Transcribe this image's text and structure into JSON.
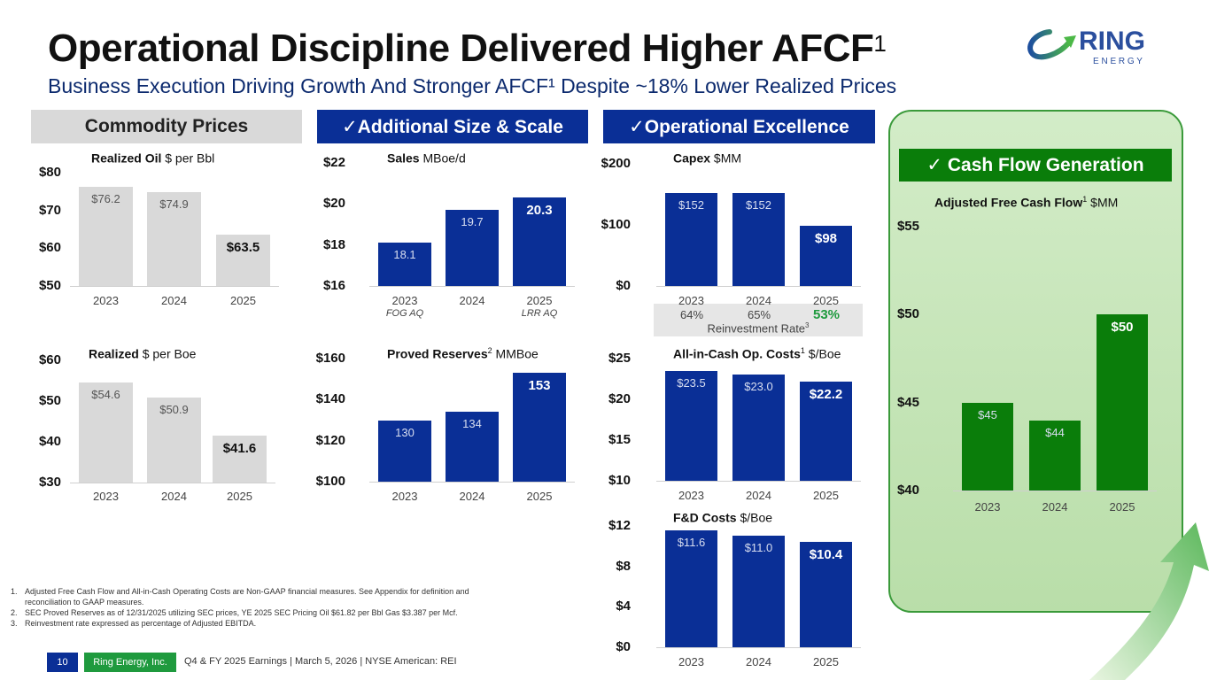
{
  "header": {
    "title": "Operational Discipline Delivered Higher AFCF",
    "title_sup": "1",
    "subtitle": "Business Execution Driving Growth And Stronger AFCF¹ Despite ~18% Lower Realized Prices"
  },
  "logo": {
    "name": "RING",
    "tagline": "E N E R G Y"
  },
  "sections": {
    "commodity": "Commodity Prices",
    "size": "✓Additional  Size & Scale",
    "ops": "✓Operational Excellence",
    "cash": "✓  Cash Flow Generation"
  },
  "colors": {
    "blue": "#0a2f96",
    "gray": "#d9d9d9",
    "green": "#0a7d0a"
  },
  "reinvestment": {
    "values": [
      "64%",
      "65%",
      "53%"
    ],
    "label": "Reinvestment Rate",
    "label_sup": "3"
  },
  "sales_sublabels": [
    "FOG AQ",
    "",
    "LRR AQ"
  ],
  "chart_data": [
    {
      "type": "bar",
      "title_bold": "Realized Oil",
      "title_rest": " $ per Bbl",
      "title_sup": "",
      "categories": [
        "2023",
        "2024",
        "2025"
      ],
      "values": [
        76.2,
        74.9,
        63.5
      ],
      "labels": [
        "$76.2",
        "$74.9",
        "$63.5"
      ],
      "yticks": [
        "$50",
        "$60",
        "$70",
        "$80"
      ],
      "ylim": [
        50,
        80
      ],
      "color": "gray"
    },
    {
      "type": "bar",
      "title_bold": "Realized",
      "title_rest": " $ per Boe",
      "title_sup": "",
      "categories": [
        "2023",
        "2024",
        "2025"
      ],
      "values": [
        54.6,
        50.9,
        41.6
      ],
      "labels": [
        "$54.6",
        "$50.9",
        "$41.6"
      ],
      "yticks": [
        "$30",
        "$40",
        "$50",
        "$60"
      ],
      "ylim": [
        30,
        60
      ],
      "color": "gray"
    },
    {
      "type": "bar",
      "title_bold": "Sales",
      "title_rest": " MBoe/d",
      "title_sup": "",
      "categories": [
        "2023",
        "2024",
        "2025"
      ],
      "values": [
        18.1,
        19.7,
        20.3
      ],
      "labels": [
        "18.1",
        "19.7",
        "20.3"
      ],
      "yticks": [
        "$16",
        "$18",
        "$20",
        "$22"
      ],
      "ylim": [
        16,
        22
      ],
      "color": "blue"
    },
    {
      "type": "bar",
      "title_bold": "Proved Reserves",
      "title_rest": " MMBoe",
      "title_sup": "2",
      "categories": [
        "2023",
        "2024",
        "2025"
      ],
      "values": [
        130,
        134,
        153
      ],
      "labels": [
        "130",
        "134",
        "153"
      ],
      "yticks": [
        "$100",
        "$120",
        "$140",
        "$160"
      ],
      "ylim": [
        100,
        160
      ],
      "color": "blue"
    },
    {
      "type": "bar",
      "title_bold": "Capex",
      "title_rest": " $MM",
      "title_sup": "",
      "categories": [
        "2023",
        "2024",
        "2025"
      ],
      "values": [
        152,
        152,
        98
      ],
      "labels": [
        "$152",
        "$152",
        "$98"
      ],
      "yticks": [
        "$0",
        "$100",
        "$200"
      ],
      "ylim": [
        0,
        200
      ],
      "color": "blue"
    },
    {
      "type": "bar",
      "title_bold": "All-in-Cash Op. Costs",
      "title_rest": " $/Boe",
      "title_sup": "1",
      "categories": [
        "2023",
        "2024",
        "2025"
      ],
      "values": [
        23.5,
        23.0,
        22.2
      ],
      "labels": [
        "$23.5",
        "$23.0",
        "$22.2"
      ],
      "yticks": [
        "$10",
        "$15",
        "$20",
        "$25"
      ],
      "ylim": [
        10,
        25
      ],
      "color": "blue"
    },
    {
      "type": "bar",
      "title_bold": "F&D Costs",
      "title_rest": " $/Boe",
      "title_sup": "",
      "categories": [
        "2023",
        "2024",
        "2025"
      ],
      "values": [
        11.6,
        11.0,
        10.4
      ],
      "labels": [
        "$11.6",
        "$11.0",
        "$10.4"
      ],
      "yticks": [
        "$0",
        "$4",
        "$8",
        "$12"
      ],
      "ylim": [
        0,
        12
      ],
      "color": "blue"
    },
    {
      "type": "bar",
      "title_bold": "Adjusted Free Cash Flow",
      "title_rest": " $MM",
      "title_sup": "1",
      "categories": [
        "2023",
        "2024",
        "2025"
      ],
      "values": [
        45,
        44,
        50
      ],
      "labels": [
        "$45",
        "$44",
        "$50"
      ],
      "yticks": [
        "$40",
        "$45",
        "$50",
        "$55"
      ],
      "ylim": [
        40,
        55
      ],
      "color": "green"
    }
  ],
  "footnotes": [
    {
      "n": "1.",
      "text": "Adjusted Free Cash Flow and All-in-Cash Operating Costs are Non-GAAP financial measures. See Appendix for definition and reconciliation to GAAP measures."
    },
    {
      "n": "2.",
      "text": "SEC Proved Reserves as of 12/31/2025 utilizing SEC prices, YE 2025 SEC Pricing Oil $61.82 per Bbl Gas $3.387 per Mcf."
    },
    {
      "n": "3.",
      "text": "Reinvestment rate expressed as percentage of Adjusted EBITDA."
    }
  ],
  "footer": {
    "page": "10",
    "company": "Ring Energy, Inc.",
    "text": "Q4 & FY 2025 Earnings | March 5, 2026 | NYSE American: REI"
  }
}
